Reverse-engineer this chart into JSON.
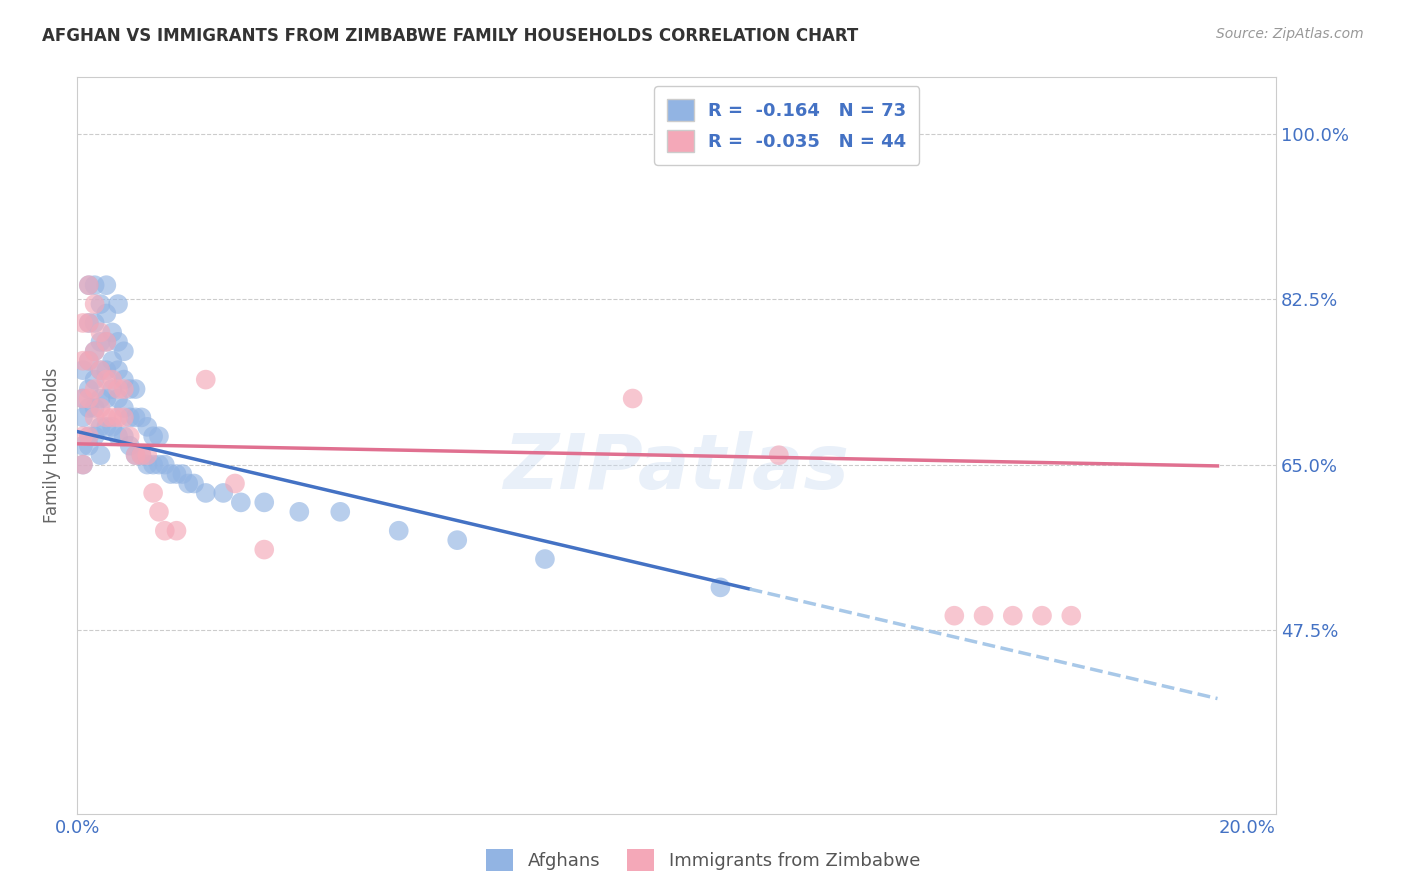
{
  "title": "AFGHAN VS IMMIGRANTS FROM ZIMBABWE FAMILY HOUSEHOLDS CORRELATION CHART",
  "source": "Source: ZipAtlas.com",
  "ylabel": "Family Households",
  "legend_label_afghan": "Afghans",
  "legend_label_zimbabwe": "Immigrants from Zimbabwe",
  "color_afghan": "#92b4e3",
  "color_zimbabwe": "#f4a8b8",
  "color_axis_blue": "#4472c4",
  "color_trendline_afghan": "#4472c4",
  "color_trendline_zimbabwe": "#e07090",
  "color_dashed": "#a8c8e8",
  "watermark": "ZIPatlas",
  "afghan_x": [
    0.001,
    0.001,
    0.001,
    0.001,
    0.001,
    0.002,
    0.002,
    0.002,
    0.002,
    0.002,
    0.002,
    0.002,
    0.003,
    0.003,
    0.003,
    0.003,
    0.003,
    0.003,
    0.004,
    0.004,
    0.004,
    0.004,
    0.004,
    0.004,
    0.005,
    0.005,
    0.005,
    0.005,
    0.005,
    0.005,
    0.006,
    0.006,
    0.006,
    0.006,
    0.007,
    0.007,
    0.007,
    0.007,
    0.007,
    0.008,
    0.008,
    0.008,
    0.008,
    0.009,
    0.009,
    0.009,
    0.01,
    0.01,
    0.01,
    0.011,
    0.011,
    0.012,
    0.012,
    0.013,
    0.013,
    0.014,
    0.014,
    0.015,
    0.016,
    0.017,
    0.018,
    0.019,
    0.02,
    0.022,
    0.025,
    0.028,
    0.032,
    0.038,
    0.045,
    0.055,
    0.065,
    0.08,
    0.11
  ],
  "afghan_y": [
    0.65,
    0.67,
    0.7,
    0.72,
    0.75,
    0.67,
    0.68,
    0.71,
    0.73,
    0.76,
    0.8,
    0.84,
    0.68,
    0.71,
    0.74,
    0.77,
    0.8,
    0.84,
    0.66,
    0.69,
    0.72,
    0.75,
    0.78,
    0.82,
    0.69,
    0.72,
    0.75,
    0.78,
    0.81,
    0.84,
    0.69,
    0.73,
    0.76,
    0.79,
    0.68,
    0.72,
    0.75,
    0.78,
    0.82,
    0.68,
    0.71,
    0.74,
    0.77,
    0.67,
    0.7,
    0.73,
    0.66,
    0.7,
    0.73,
    0.66,
    0.7,
    0.65,
    0.69,
    0.65,
    0.68,
    0.65,
    0.68,
    0.65,
    0.64,
    0.64,
    0.64,
    0.63,
    0.63,
    0.62,
    0.62,
    0.61,
    0.61,
    0.6,
    0.6,
    0.58,
    0.57,
    0.55,
    0.52
  ],
  "zimbabwe_x": [
    0.001,
    0.001,
    0.001,
    0.001,
    0.001,
    0.002,
    0.002,
    0.002,
    0.002,
    0.002,
    0.003,
    0.003,
    0.003,
    0.003,
    0.004,
    0.004,
    0.004,
    0.005,
    0.005,
    0.005,
    0.006,
    0.006,
    0.007,
    0.007,
    0.008,
    0.008,
    0.009,
    0.01,
    0.011,
    0.012,
    0.013,
    0.014,
    0.015,
    0.017,
    0.022,
    0.027,
    0.032,
    0.095,
    0.12,
    0.15,
    0.155,
    0.16,
    0.165,
    0.17
  ],
  "zimbabwe_y": [
    0.65,
    0.68,
    0.72,
    0.76,
    0.8,
    0.68,
    0.72,
    0.76,
    0.8,
    0.84,
    0.7,
    0.73,
    0.77,
    0.82,
    0.71,
    0.75,
    0.79,
    0.7,
    0.74,
    0.78,
    0.7,
    0.74,
    0.7,
    0.73,
    0.7,
    0.73,
    0.68,
    0.66,
    0.66,
    0.66,
    0.62,
    0.6,
    0.58,
    0.58,
    0.74,
    0.63,
    0.56,
    0.72,
    0.66,
    0.49,
    0.49,
    0.49,
    0.49,
    0.49
  ],
  "trendline_afghan_x0": 0.0,
  "trendline_afghan_x_solid_end": 0.115,
  "trendline_afghan_x_dash_end": 0.195,
  "trendline_afghan_y0": 0.685,
  "trendline_afghan_slope": -1.45,
  "trendline_zimbabwe_x0": 0.0,
  "trendline_zimbabwe_x_end": 0.195,
  "trendline_zimbabwe_y0": 0.672,
  "trendline_zimbabwe_slope": -0.12,
  "xlim": [
    0.0,
    0.205
  ],
  "ylim": [
    0.28,
    1.06
  ],
  "ytick_vals": [
    0.475,
    0.65,
    0.825,
    1.0
  ],
  "ytick_labels": [
    "47.5%",
    "65.0%",
    "82.5%",
    "100.0%"
  ]
}
